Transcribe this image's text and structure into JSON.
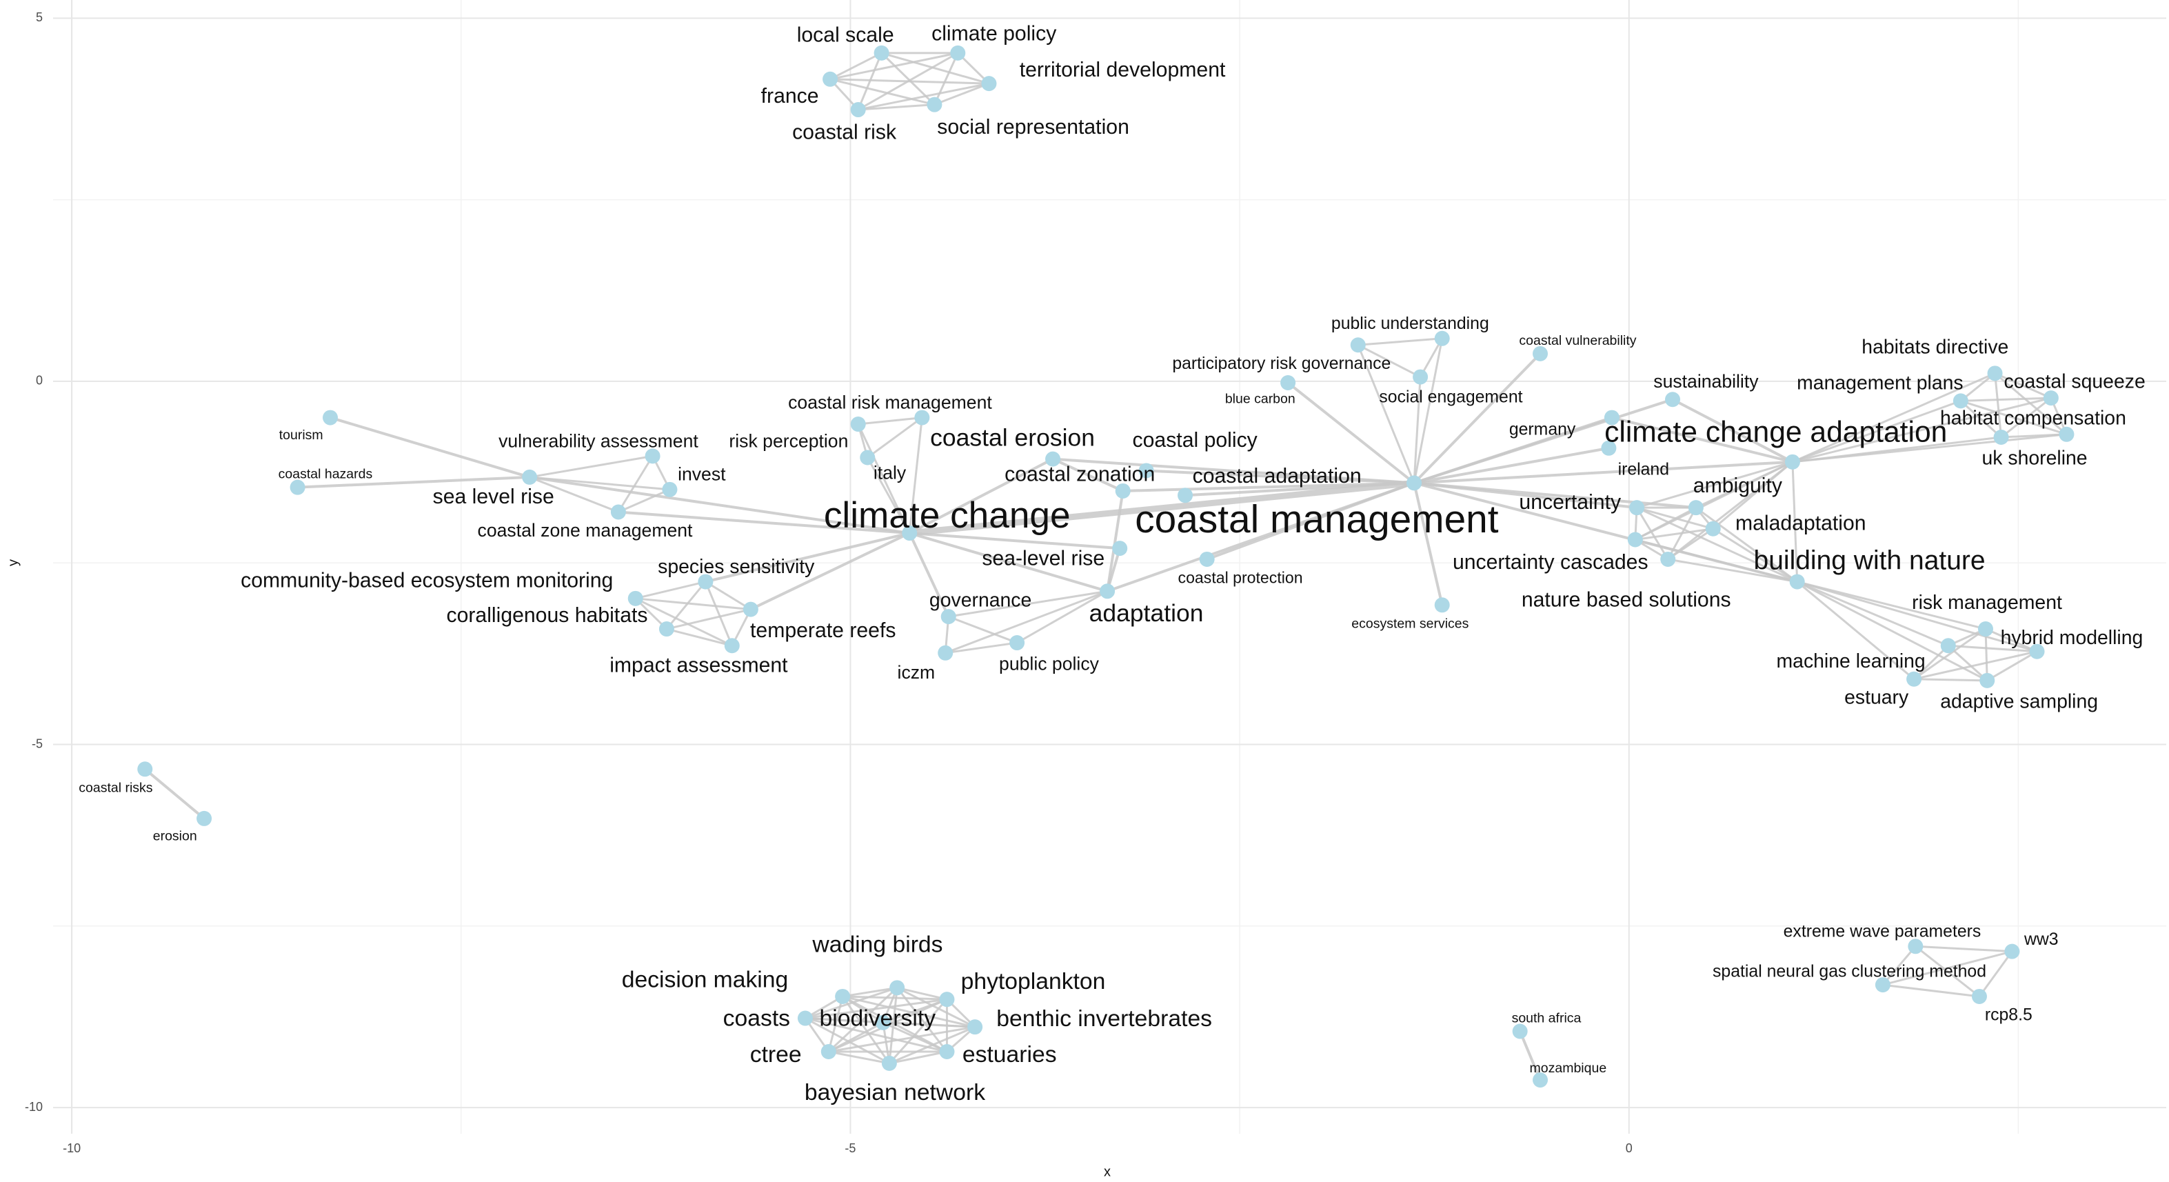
{
  "chart_data": {
    "type": "network",
    "xlabel": "x",
    "ylabel": "y",
    "xlim": [
      -10.12,
      3.45
    ],
    "ylim": [
      -10.36,
      5.25
    ],
    "xticks": [
      -10,
      -5,
      0
    ],
    "yticks": [
      5,
      0,
      -5,
      -10
    ],
    "grid": true,
    "node_color": "#add8e6",
    "edge_color": "#c8c8c8",
    "nodes": [
      {
        "label": "local scale",
        "x": -4.8,
        "y": 4.52
      },
      {
        "label": "climate policy",
        "x": -4.31,
        "y": 4.52
      },
      {
        "label": "territorial development",
        "x": -4.11,
        "y": 4.1
      },
      {
        "label": "france",
        "x": -5.13,
        "y": 4.16
      },
      {
        "label": "coastal risk",
        "x": -4.95,
        "y": 3.74
      },
      {
        "label": "social representation",
        "x": -4.46,
        "y": 3.81
      },
      {
        "label": "tourism",
        "x": -8.34,
        "y": -0.5
      },
      {
        "label": "coastal hazards",
        "x": -8.55,
        "y": -1.46
      },
      {
        "label": "vulnerability assessment",
        "x": -6.27,
        "y": -1.03
      },
      {
        "label": "sea level rise",
        "x": -7.06,
        "y": -1.32
      },
      {
        "label": "invest",
        "x": -6.16,
        "y": -1.49
      },
      {
        "label": "coastal zone management",
        "x": -6.49,
        "y": -1.8
      },
      {
        "label": "risk perception",
        "x": -4.95,
        "y": -0.59
      },
      {
        "label": "coastal risk management",
        "x": -4.54,
        "y": -0.5
      },
      {
        "label": "italy",
        "x": -4.89,
        "y": -1.05
      },
      {
        "label": "climate change",
        "x": -4.62,
        "y": -2.09
      },
      {
        "label": "coastal erosion",
        "x": -3.7,
        "y": -1.07
      },
      {
        "label": "coastal policy",
        "x": -3.1,
        "y": -1.23
      },
      {
        "label": "coastal zonation",
        "x": -3.25,
        "y": -1.51
      },
      {
        "label": "coastal adaptation",
        "x": -2.85,
        "y": -1.57
      },
      {
        "label": "coastal management",
        "x": -1.38,
        "y": -1.4
      },
      {
        "label": "sea-level rise",
        "x": -3.27,
        "y": -2.3
      },
      {
        "label": "adaptation",
        "x": -3.35,
        "y": -2.89
      },
      {
        "label": "coastal protection",
        "x": -2.71,
        "y": -2.45
      },
      {
        "label": "governance",
        "x": -4.37,
        "y": -3.24
      },
      {
        "label": "iczm",
        "x": -4.39,
        "y": -3.74
      },
      {
        "label": "public policy",
        "x": -3.93,
        "y": -3.6
      },
      {
        "label": "species sensitivity",
        "x": -5.93,
        "y": -2.76
      },
      {
        "label": "community-based ecosystem monitoring",
        "x": -6.38,
        "y": -2.99
      },
      {
        "label": "coralligenous habitats",
        "x": -6.18,
        "y": -3.41
      },
      {
        "label": "temperate reefs",
        "x": -5.64,
        "y": -3.14
      },
      {
        "label": "impact assessment",
        "x": -5.76,
        "y": -3.64
      },
      {
        "label": "public understanding",
        "x": -1.2,
        "y": 0.59
      },
      {
        "label": "participatory risk governance",
        "x": -1.74,
        "y": 0.5
      },
      {
        "label": "social engagement",
        "x": -1.34,
        "y": 0.06
      },
      {
        "label": "blue carbon",
        "x": -2.19,
        "y": -0.02
      },
      {
        "label": "coastal vulnerability",
        "x": -0.57,
        "y": 0.38
      },
      {
        "label": "ecosystem services",
        "x": -1.2,
        "y": -3.08
      },
      {
        "label": "germany",
        "x": -0.11,
        "y": -0.5
      },
      {
        "label": "sustainability",
        "x": 0.28,
        "y": -0.25
      },
      {
        "label": "ireland",
        "x": -0.13,
        "y": -0.92
      },
      {
        "label": "uncertainty",
        "x": 0.05,
        "y": -1.74
      },
      {
        "label": "ambiguity",
        "x": 0.43,
        "y": -1.74
      },
      {
        "label": "maladaptation",
        "x": 0.54,
        "y": -2.03
      },
      {
        "label": "uncertainty cascades",
        "x": 0.04,
        "y": -2.18
      },
      {
        "label": "nature based solutions",
        "x": 0.25,
        "y": -2.45
      },
      {
        "label": "climate change adaptation",
        "x": 1.05,
        "y": -1.11
      },
      {
        "label": "building with nature",
        "x": 1.08,
        "y": -2.76
      },
      {
        "label": "habitats directive",
        "x": 2.35,
        "y": 0.11
      },
      {
        "label": "management plans",
        "x": 2.13,
        "y": -0.27
      },
      {
        "label": "coastal squeeze",
        "x": 2.71,
        "y": -0.23
      },
      {
        "label": "habitat compensation",
        "x": 2.39,
        "y": -0.77
      },
      {
        "label": "uk shoreline",
        "x": 2.81,
        "y": -0.73
      },
      {
        "label": "risk management",
        "x": 2.29,
        "y": -3.41
      },
      {
        "label": "hybrid modelling",
        "x": 2.62,
        "y": -3.72
      },
      {
        "label": "machine learning",
        "x": 2.05,
        "y": -3.64
      },
      {
        "label": "estuary",
        "x": 1.83,
        "y": -4.1
      },
      {
        "label": "adaptive sampling",
        "x": 2.3,
        "y": -4.12
      },
      {
        "label": "coastal risks",
        "x": -9.53,
        "y": -5.34
      },
      {
        "label": "erosion",
        "x": -9.15,
        "y": -6.02
      },
      {
        "label": "wading birds",
        "x": -4.7,
        "y": -8.35
      },
      {
        "label": "decision making",
        "x": -5.05,
        "y": -8.47
      },
      {
        "label": "phytoplankton",
        "x": -4.38,
        "y": -8.51
      },
      {
        "label": "coasts",
        "x": -5.29,
        "y": -8.77
      },
      {
        "label": "biodiversity",
        "x": -4.79,
        "y": -8.83
      },
      {
        "label": "benthic invertebrates",
        "x": -4.2,
        "y": -8.89
      },
      {
        "label": "ctree",
        "x": -5.14,
        "y": -9.23
      },
      {
        "label": "estuaries",
        "x": -4.38,
        "y": -9.23
      },
      {
        "label": "bayesian network",
        "x": -4.75,
        "y": -9.39
      },
      {
        "label": "extreme wave parameters",
        "x": 1.84,
        "y": -7.78
      },
      {
        "label": "ww3",
        "x": 2.46,
        "y": -7.85
      },
      {
        "label": "spatial neural gas clustering method",
        "x": 1.63,
        "y": -8.31
      },
      {
        "label": "rcp8.5",
        "x": 2.25,
        "y": -8.47
      },
      {
        "label": "south africa",
        "x": -0.7,
        "y": -8.95
      },
      {
        "label": "mozambique",
        "x": -0.57,
        "y": -9.62
      }
    ],
    "cliques": [
      [
        "local scale",
        "climate policy",
        "territorial development",
        "france",
        "coastal risk",
        "social representation"
      ],
      [
        "wading birds",
        "decision making",
        "phytoplankton",
        "coasts",
        "biodiversity",
        "benthic invertebrates",
        "ctree",
        "estuaries",
        "bayesian network"
      ],
      [
        "sea level rise",
        "vulnerability assessment",
        "invest",
        "coastal zone management"
      ],
      [
        "species sensitivity",
        "community-based ecosystem monitoring",
        "coralligenous habitats",
        "temperate reefs",
        "impact assessment"
      ],
      [
        "governance",
        "iczm",
        "public policy",
        "adaptation"
      ],
      [
        "uncertainty",
        "ambiguity",
        "maladaptation",
        "uncertainty cascades",
        "nature based solutions",
        "building with nature",
        "climate change adaptation"
      ],
      [
        "risk management",
        "hybrid modelling",
        "machine learning",
        "estuary",
        "adaptive sampling",
        "building with nature"
      ],
      [
        "habitats directive",
        "management plans",
        "coastal squeeze",
        "habitat compensation",
        "uk shoreline",
        "climate change adaptation"
      ],
      [
        "extreme wave parameters",
        "ww3",
        "spatial neural gas clustering method",
        "rcp8.5"
      ],
      [
        "coastal risk management",
        "risk perception",
        "italy",
        "climate change"
      ],
      [
        "public understanding",
        "participatory risk governance",
        "social engagement",
        "coastal management"
      ]
    ],
    "edges": [
      [
        "tourism",
        "sea level rise"
      ],
      [
        "coastal hazards",
        "sea level rise"
      ],
      [
        "sea level rise",
        "climate change"
      ],
      [
        "climate change",
        "coastal management"
      ],
      [
        "climate change",
        "coastal erosion"
      ],
      [
        "climate change",
        "adaptation"
      ],
      [
        "climate change",
        "sea-level rise"
      ],
      [
        "climate change",
        "species sensitivity"
      ],
      [
        "climate change",
        "temperate reefs"
      ],
      [
        "climate change",
        "coastal zone management"
      ],
      [
        "climate change",
        "governance"
      ],
      [
        "coastal erosion",
        "coastal management"
      ],
      [
        "coastal policy",
        "coastal management"
      ],
      [
        "coastal zonation",
        "coastal management"
      ],
      [
        "coastal adaptation",
        "coastal management"
      ],
      [
        "coastal erosion",
        "coastal zonation"
      ],
      [
        "adaptation",
        "coastal management"
      ],
      [
        "coastal protection",
        "coastal management"
      ],
      [
        "sea-level rise",
        "adaptation"
      ],
      [
        "adaptation",
        "coastal zonation"
      ],
      [
        "coastal management",
        "climate change adaptation"
      ],
      [
        "coastal management",
        "building with nature"
      ],
      [
        "coastal management",
        "uncertainty"
      ],
      [
        "coastal management",
        "germany"
      ],
      [
        "coastal management",
        "ireland"
      ],
      [
        "coastal management",
        "sustainability"
      ],
      [
        "coastal management",
        "coastal vulnerability"
      ],
      [
        "coastal management",
        "blue carbon"
      ],
      [
        "coastal management",
        "ecosystem services"
      ],
      [
        "coastal management",
        "ambiguity"
      ],
      [
        "climate change adaptation",
        "sustainability"
      ],
      [
        "climate change adaptation",
        "germany"
      ],
      [
        "coastal risks",
        "erosion"
      ],
      [
        "south africa",
        "mozambique"
      ]
    ]
  }
}
